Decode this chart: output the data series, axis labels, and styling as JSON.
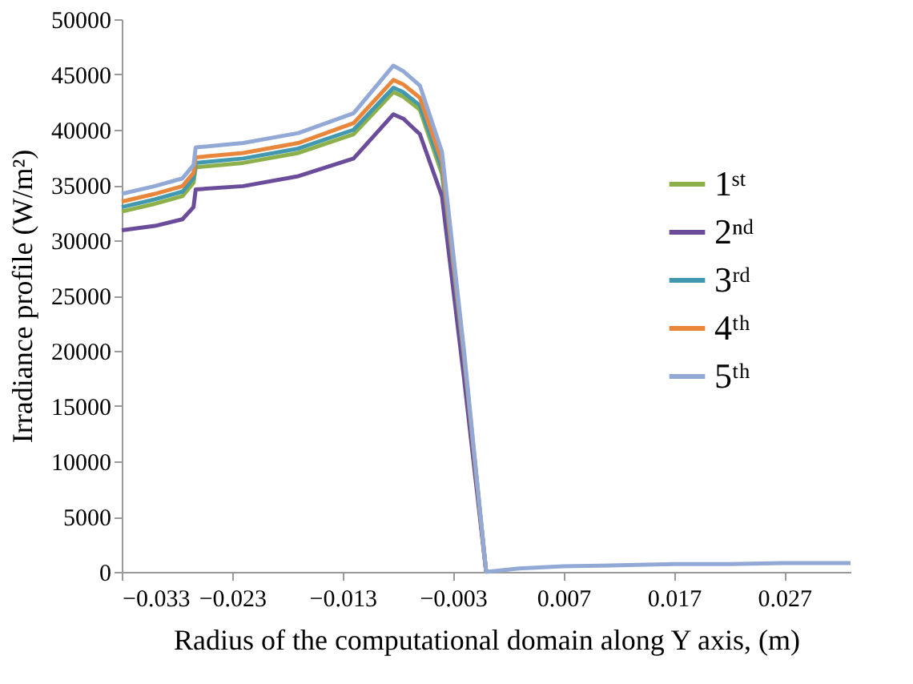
{
  "chart_data": {
    "type": "line",
    "xlabel": "Radius of the computational domain along Y axis, (m)",
    "ylabel": "Irradiance profile (W/m²)",
    "x": [
      -0.033,
      -0.03,
      -0.0275,
      -0.0265,
      -0.0263,
      -0.022,
      -0.017,
      -0.012,
      -0.0084,
      -0.0075,
      -0.006,
      -0.004,
      -0.002,
      0.0,
      0.003,
      0.007,
      0.012,
      0.017,
      0.022,
      0.027,
      0.033
    ],
    "series": [
      {
        "name": "1ˢᵗ",
        "color": "#8db04a",
        "values": [
          32600,
          33300,
          34000,
          35200,
          36600,
          37000,
          37900,
          39600,
          43400,
          43000,
          41800,
          36000,
          19000,
          0,
          null,
          null,
          null,
          null,
          null,
          null,
          null
        ]
      },
      {
        "name": "2ⁿᵈ",
        "color": "#6b4c9a",
        "values": [
          30900,
          31300,
          31900,
          33000,
          34600,
          34900,
          35800,
          37400,
          41400,
          41000,
          39600,
          34000,
          17500,
          0,
          null,
          null,
          null,
          null,
          null,
          null,
          null
        ]
      },
      {
        "name": "3ʳᵈ",
        "color": "#4198af",
        "values": [
          33000,
          33700,
          34400,
          35600,
          37000,
          37400,
          38300,
          40000,
          43800,
          43400,
          42200,
          36500,
          19300,
          0,
          null,
          null,
          null,
          null,
          null,
          null,
          null
        ]
      },
      {
        "name": "4ᵗʰ",
        "color": "#e8873b",
        "values": [
          33500,
          34200,
          34900,
          36100,
          37500,
          37900,
          38800,
          40600,
          44500,
          44100,
          42900,
          37100,
          19600,
          0,
          null,
          null,
          null,
          null,
          null,
          null,
          null
        ]
      },
      {
        "name": "5ᵗʰ",
        "color": "#92a9d6",
        "values": [
          34200,
          34900,
          35600,
          36800,
          38400,
          38800,
          39700,
          41500,
          45800,
          45300,
          44000,
          38000,
          20000,
          0,
          300,
          500,
          600,
          700,
          700,
          800,
          800
        ]
      }
    ],
    "xlim": [
      -0.033,
      0.033
    ],
    "xticks": [
      -0.033,
      -0.023,
      -0.013,
      -0.003,
      0.007,
      0.017,
      0.027
    ],
    "ylim": [
      0,
      50000
    ],
    "yticks": [
      0,
      5000,
      10000,
      15000,
      20000,
      25000,
      30000,
      35000,
      40000,
      45000,
      50000
    ],
    "grid": false,
    "legend": "right",
    "marker": "none",
    "line_style": "solid"
  }
}
